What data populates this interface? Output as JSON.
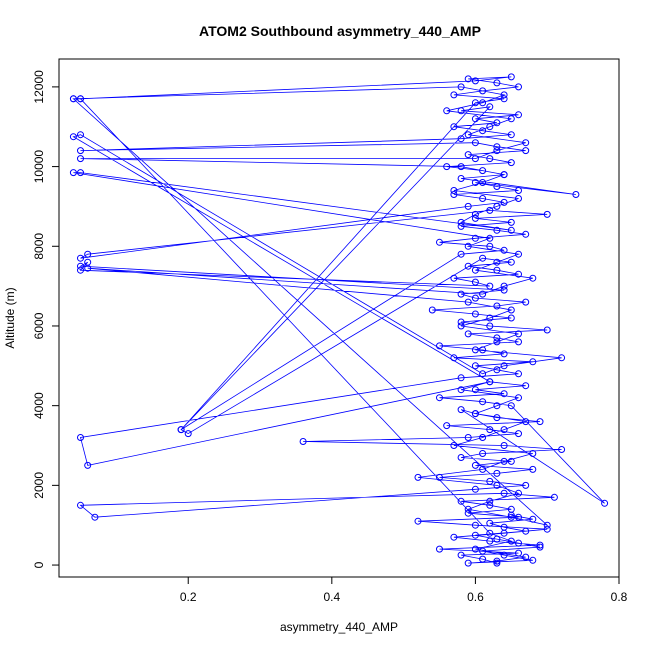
{
  "chart_data": {
    "type": "scatter",
    "title": "ATOM2 Southbound asymmetry_440_AMP",
    "xlabel": "asymmetry_440_AMP",
    "ylabel": "Altitude (m)",
    "xlim": [
      0.02,
      0.8
    ],
    "ylim": [
      -300,
      12700
    ],
    "xticks": [
      {
        "value": 0.2,
        "label": "0.2"
      },
      {
        "value": 0.4,
        "label": "0.4"
      },
      {
        "value": 0.6,
        "label": "0.6"
      },
      {
        "value": 0.8,
        "label": "0.8"
      }
    ],
    "yticks": [
      {
        "value": 0,
        "label": "0"
      },
      {
        "value": 2000,
        "label": "2000"
      },
      {
        "value": 4000,
        "label": "4000"
      },
      {
        "value": 6000,
        "label": "6000"
      },
      {
        "value": 8000,
        "label": "8000"
      },
      {
        "value": 10000,
        "label": "10000"
      },
      {
        "value": 12000,
        "label": "12000"
      }
    ],
    "grid": false,
    "legend": "none",
    "marker": "open-circle",
    "connected": true,
    "color": "#0000ff",
    "series": [
      {
        "x": [
          0.63,
          0.61,
          0.58,
          0.66,
          0.55,
          0.69,
          0.62,
          0.57,
          0.64,
          0.7,
          0.6,
          0.52,
          0.66,
          0.59,
          0.65,
          0.62,
          0.58,
          0.71,
          0.64,
          0.05,
          0.07,
          0.6,
          0.67,
          0.62,
          0.55,
          0.63,
          0.68,
          0.6,
          0.65,
          0.58,
          0.61,
          0.72,
          0.64,
          0.36,
          0.59,
          0.66,
          0.62,
          0.56,
          0.69,
          0.63,
          0.6,
          0.58,
          0.78,
          0.65,
          0.61,
          0.55,
          0.64,
          0.6,
          0.67,
          0.62,
          0.06,
          0.05,
          0.58,
          0.66,
          0.63,
          0.6,
          0.68,
          0.57,
          0.64,
          0.61,
          0.55,
          0.66,
          0.63,
          0.59,
          0.7,
          0.62,
          0.58,
          0.65,
          0.6,
          0.54,
          0.63,
          0.67,
          0.6,
          0.58,
          0.64,
          0.05,
          0.06,
          0.05,
          0.62,
          0.6,
          0.57,
          0.66,
          0.63,
          0.59,
          0.65,
          0.61,
          0.2,
          0.19,
          0.58,
          0.64,
          0.62,
          0.55,
          0.6,
          0.67,
          0.63,
          0.58,
          0.65,
          0.6,
          0.7,
          0.62,
          0.06,
          0.05,
          0.59,
          0.64,
          0.61,
          0.57,
          0.66,
          0.63,
          0.6,
          0.74,
          0.58,
          0.64,
          0.61,
          0.56,
          0.65,
          0.62,
          0.59,
          0.67,
          0.63,
          0.6,
          0.05,
          0.58,
          0.65,
          0.61,
          0.57,
          0.63,
          0.6,
          0.66,
          0.58,
          0.62,
          0.19,
          0.6,
          0.64,
          0.57,
          0.61,
          0.66,
          0.63,
          0.59,
          0.65,
          0.6,
          0.05,
          0.04,
          0.58,
          0.64,
          0.61,
          0.56,
          0.65,
          0.62,
          0.59,
          0.67,
          0.63,
          0.6,
          0.05,
          0.58,
          0.64,
          0.61,
          0.57,
          0.66,
          0.63,
          0.6,
          0.58,
          0.65,
          0.05,
          0.04,
          0.62,
          0.59,
          0.66,
          0.63,
          0.6,
          0.68,
          0.64,
          0.61,
          0.06,
          0.59,
          0.65,
          0.62,
          0.58,
          0.66,
          0.63,
          0.6,
          0.72,
          0.64,
          0.61,
          0.05,
          0.04,
          0.62,
          0.58,
          0.66,
          0.63,
          0.6,
          0.67,
          0.64,
          0.61,
          0.57,
          0.68,
          0.64,
          0.61,
          0.52,
          0.63,
          0.66,
          0.62,
          0.59,
          0.65,
          0.7,
          0.04,
          0.05,
          0.62,
          0.65,
          0.6,
          0.67,
          0.63,
          0.59,
          0.68,
          0.64,
          0.61,
          0.69,
          0.66,
          0.63,
          0.6,
          0.67,
          0.64,
          0.62,
          0.68,
          0.65
        ],
        "y": [
          50,
          150,
          250,
          300,
          400,
          500,
          600,
          700,
          800,
          900,
          1000,
          1100,
          1200,
          1300,
          1400,
          1500,
          1600,
          1700,
          1800,
          1500,
          1200,
          1900,
          2000,
          2100,
          2200,
          2300,
          2400,
          2500,
          2600,
          2700,
          2800,
          2900,
          3000,
          3100,
          3200,
          3300,
          3400,
          3500,
          3600,
          3700,
          3800,
          3900,
          1550,
          4000,
          4100,
          4200,
          4300,
          4400,
          4500,
          4600,
          2500,
          3200,
          4700,
          4800,
          4900,
          5000,
          5100,
          5200,
          5300,
          5400,
          5500,
          5600,
          5700,
          5800,
          5900,
          6000,
          6100,
          6200,
          6300,
          6400,
          6500,
          6600,
          6700,
          6800,
          6900,
          7500,
          7600,
          7400,
          7000,
          7100,
          7200,
          7300,
          7400,
          7500,
          7600,
          7700,
          3300,
          3400,
          7800,
          7900,
          8000,
          8100,
          8200,
          8300,
          8400,
          8500,
          8600,
          8700,
          8800,
          8900,
          7800,
          7700,
          9000,
          9100,
          9200,
          9300,
          9400,
          9500,
          9600,
          9300,
          9700,
          9800,
          9900,
          10000,
          10100,
          10200,
          10300,
          10400,
          10500,
          10600,
          10400,
          10700,
          10800,
          10900,
          11000,
          11100,
          11200,
          11300,
          11400,
          11500,
          3400,
          11600,
          11700,
          11800,
          11900,
          12000,
          12100,
          12200,
          12250,
          12150,
          11700,
          11700,
          12000,
          11800,
          11600,
          11400,
          11200,
          11000,
          10800,
          10600,
          10400,
          10200,
          10200,
          10000,
          9800,
          9600,
          9400,
          9200,
          9000,
          8800,
          8600,
          8400,
          9850,
          9850,
          8200,
          8000,
          7800,
          7600,
          7400,
          7200,
          7000,
          6800,
          7450,
          6600,
          6400,
          6200,
          6000,
          5800,
          5600,
          5400,
          5200,
          5000,
          4800,
          10800,
          10750,
          4600,
          4400,
          4200,
          4000,
          3800,
          3600,
          3400,
          3200,
          3000,
          2800,
          2600,
          2400,
          2200,
          2000,
          1800,
          1600,
          1400,
          1200,
          1000,
          11700,
          11700,
          800,
          600,
          400,
          200,
          100,
          50,
          120,
          250,
          350,
          450,
          550,
          650,
          750,
          850,
          950,
          1050,
          1150,
          1250
        ]
      }
    ]
  }
}
